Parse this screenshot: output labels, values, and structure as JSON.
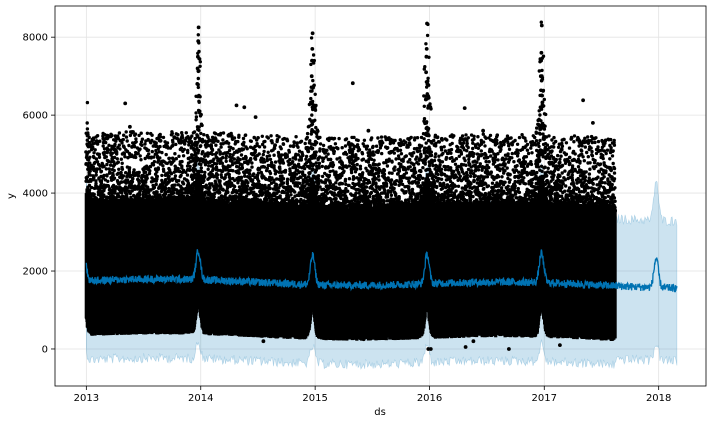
{
  "chart_data": {
    "type": "scatter",
    "title": "",
    "xlabel": "ds",
    "ylabel": "y",
    "xlim": [
      "2012-09-23",
      "2018-06-01"
    ],
    "ylim": [
      -950,
      8800
    ],
    "grid": true,
    "x_ticks": [
      "2013",
      "2014",
      "2015",
      "2016",
      "2017",
      "2018"
    ],
    "x_tick_dates": [
      "2013-01-01",
      "2014-01-01",
      "2015-01-01",
      "2016-01-01",
      "2017-01-01",
      "2018-01-01"
    ],
    "y_ticks": [
      0,
      2000,
      4000,
      6000,
      8000
    ],
    "history_range": [
      "2013-01-01",
      "2017-08-15"
    ],
    "forecast_range": [
      "2013-01-01",
      "2018-02-28"
    ],
    "series": [
      {
        "kind": "observed-points",
        "color": "#000000",
        "points": [
          [
            "2013-05-05",
            6300
          ],
          [
            "2013-05-20",
            5700
          ],
          [
            "2013-07-15",
            5100
          ],
          [
            "2013-12-25",
            8250
          ],
          [
            "2013-12-24",
            7900
          ],
          [
            "2013-12-23",
            7500
          ],
          [
            "2013-12-22",
            7200
          ],
          [
            "2013-12-21",
            6800
          ],
          [
            "2013-12-26",
            6500
          ],
          [
            "2014-04-25",
            6250
          ],
          [
            "2014-05-20",
            6200
          ],
          [
            "2014-06-25",
            5950
          ],
          [
            "2014-12-24",
            8100
          ],
          [
            "2014-12-23",
            7700
          ],
          [
            "2014-12-22",
            7400
          ],
          [
            "2014-12-21",
            7000
          ],
          [
            "2014-12-25",
            6700
          ],
          [
            "2014-12-20",
            6300
          ],
          [
            "2015-05-01",
            6820
          ],
          [
            "2015-06-20",
            5600
          ],
          [
            "2015-12-24",
            8350
          ],
          [
            "2015-12-23",
            7700
          ],
          [
            "2015-12-22",
            7500
          ],
          [
            "2015-12-21",
            7100
          ],
          [
            "2015-12-25",
            6800
          ],
          [
            "2015-12-20",
            6400
          ],
          [
            "2016-04-22",
            6180
          ],
          [
            "2016-06-20",
            5600
          ],
          [
            "2016-12-24",
            8300
          ],
          [
            "2016-12-23",
            7600
          ],
          [
            "2016-12-22",
            7400
          ],
          [
            "2016-12-21",
            7000
          ],
          [
            "2016-12-25",
            6500
          ],
          [
            "2016-12-20",
            6200
          ],
          [
            "2017-05-05",
            6380
          ],
          [
            "2017-06-05",
            5800
          ],
          [
            "2014-07-20",
            200
          ],
          [
            "2015-12-28",
            0
          ],
          [
            "2016-01-05",
            0
          ],
          [
            "2016-04-25",
            50
          ],
          [
            "2016-05-20",
            200
          ],
          [
            "2016-09-10",
            0
          ],
          [
            "2017-02-20",
            100
          ],
          [
            "2015-06-05",
            250
          ]
        ]
      },
      {
        "kind": "forecast-line",
        "color": "#0072B2",
        "base": 1750,
        "holiday_peak": 2500
      },
      {
        "kind": "uncertainty-band",
        "color": "#0072B2",
        "opacity": 0.2,
        "lower": -150,
        "upper": 3600
      }
    ]
  }
}
